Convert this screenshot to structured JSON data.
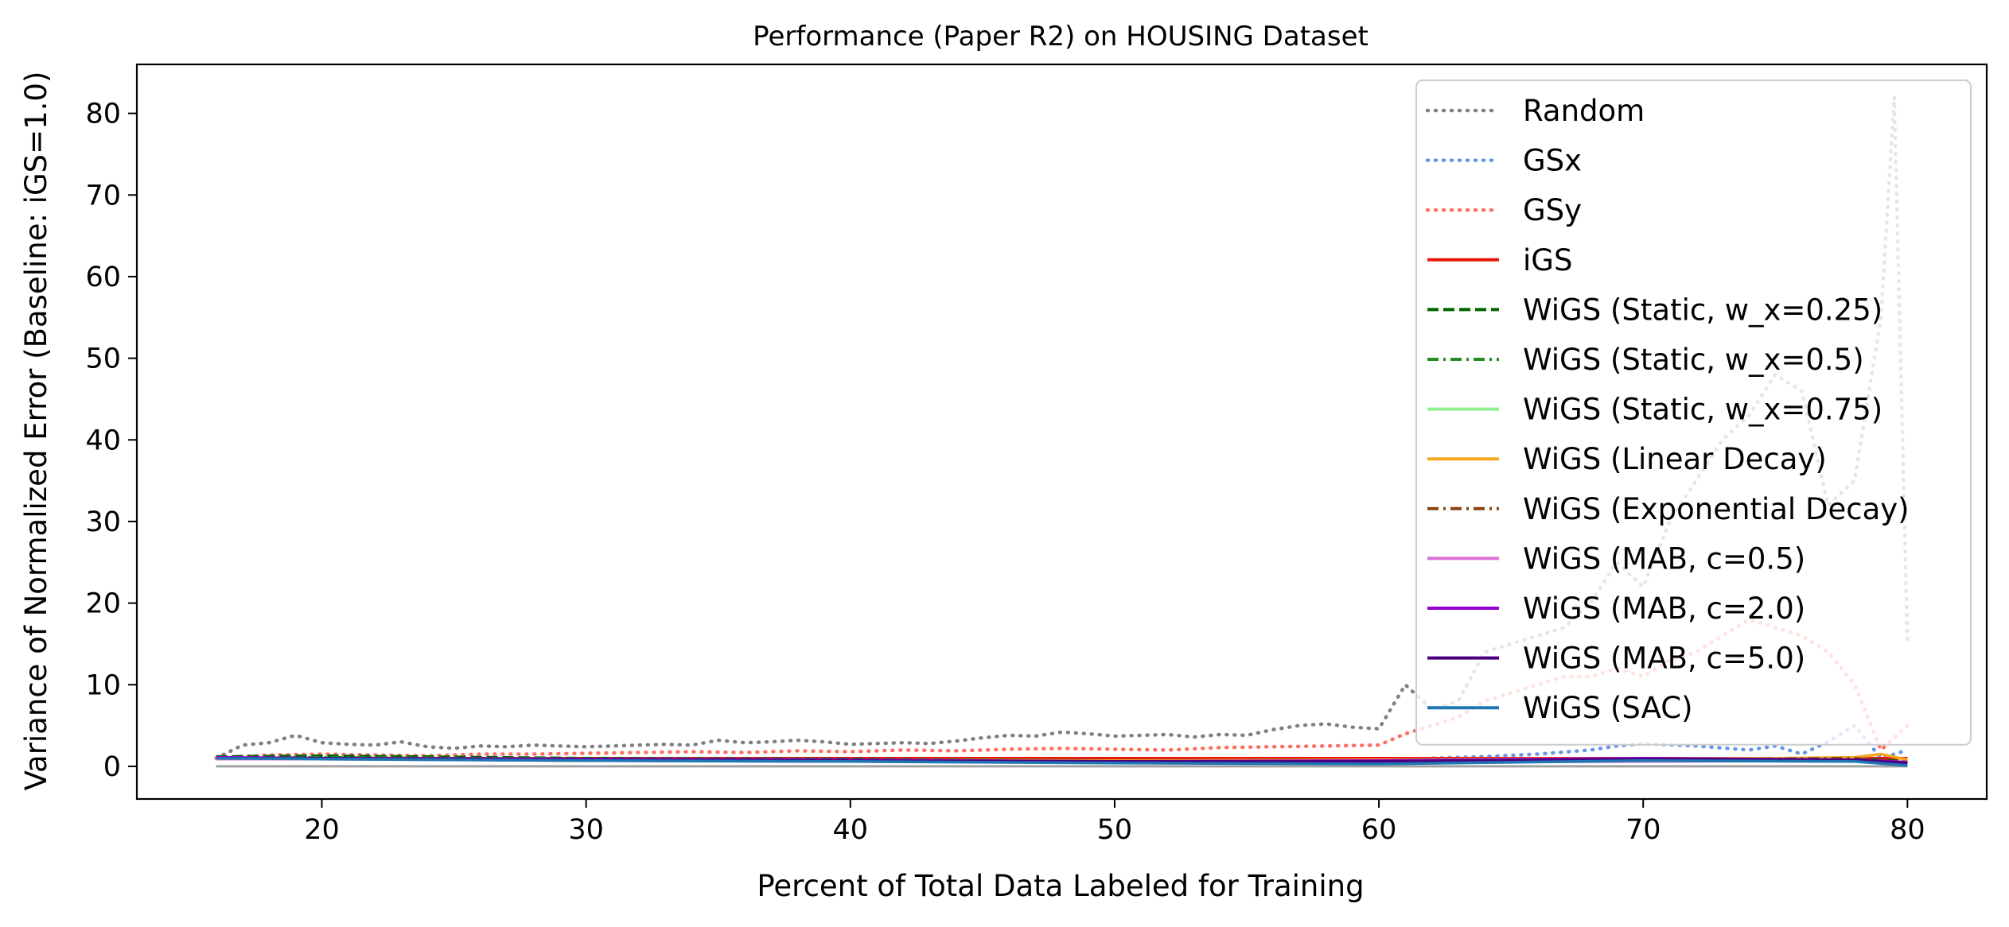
{
  "chart_data": {
    "type": "line",
    "title": "Performance (Paper R2) on HOUSING Dataset",
    "xlabel": "Percent of Total Data Labeled for Training",
    "ylabel": "Variance of Normalized Error (Baseline: iGS=1.0)",
    "xlim": [
      13,
      83
    ],
    "ylim": [
      -4,
      86
    ],
    "xticks": [
      20,
      30,
      40,
      50,
      60,
      70,
      80
    ],
    "yticks": [
      0,
      10,
      20,
      30,
      40,
      50,
      60,
      70,
      80
    ],
    "grid": false,
    "legend_placement": "top-right",
    "series": [
      {
        "name": "Random",
        "color": "#808080",
        "dash": "dotted",
        "x": [
          16,
          17,
          18,
          19,
          20,
          21,
          22,
          23,
          24,
          25,
          26,
          27,
          28,
          29,
          30,
          31,
          32,
          33,
          34,
          35,
          36,
          37,
          38,
          39,
          40,
          41,
          42,
          43,
          44,
          45,
          46,
          47,
          48,
          49,
          50,
          51,
          52,
          53,
          54,
          55,
          56,
          57,
          58,
          59,
          60,
          61,
          62,
          63,
          64,
          65,
          66,
          67,
          68,
          69,
          70,
          71,
          72,
          73,
          74,
          75,
          76,
          77,
          78,
          79,
          79.5,
          80
        ],
        "y": [
          1.0,
          2.6,
          2.9,
          3.8,
          2.9,
          2.7,
          2.6,
          3.0,
          2.4,
          2.2,
          2.5,
          2.4,
          2.6,
          2.5,
          2.4,
          2.5,
          2.6,
          2.7,
          2.6,
          3.2,
          2.9,
          3.0,
          3.2,
          3.0,
          2.7,
          2.8,
          2.9,
          2.8,
          3.1,
          3.5,
          3.8,
          3.7,
          4.2,
          4.0,
          3.7,
          3.8,
          3.9,
          3.6,
          3.9,
          3.8,
          4.5,
          5.0,
          5.2,
          4.8,
          4.6,
          10.0,
          7.0,
          8.0,
          14.0,
          15.0,
          16.0,
          17.0,
          20.0,
          25.0,
          22.0,
          30.0,
          35.0,
          40.0,
          43.0,
          48.0,
          46.0,
          32.0,
          35.0,
          55.0,
          82.0,
          15.0
        ]
      },
      {
        "name": "GSx",
        "color": "#6495ed",
        "dash": "dotted",
        "x": [
          16,
          20,
          25,
          30,
          35,
          40,
          45,
          50,
          55,
          60,
          61,
          62,
          64,
          66,
          68,
          69,
          70,
          72,
          74,
          75,
          76,
          77,
          78,
          79,
          80
        ],
        "y": [
          1.0,
          1.0,
          0.9,
          0.9,
          0.9,
          0.8,
          0.9,
          0.9,
          0.8,
          0.9,
          0.8,
          1.0,
          1.2,
          1.5,
          2.0,
          2.5,
          2.8,
          2.5,
          2.0,
          2.5,
          1.5,
          3.0,
          5.0,
          1.0,
          2.0
        ]
      },
      {
        "name": "GSy",
        "color": "#ff6f61",
        "dash": "dotted",
        "x": [
          16,
          18,
          20,
          22,
          24,
          26,
          28,
          30,
          32,
          34,
          36,
          38,
          40,
          42,
          44,
          46,
          48,
          50,
          52,
          54,
          56,
          58,
          60,
          61,
          62,
          63,
          64,
          65,
          66,
          67,
          68,
          69,
          70,
          71,
          72,
          73,
          74,
          75,
          76,
          77,
          78,
          79,
          80
        ],
        "y": [
          1.0,
          1.4,
          1.5,
          1.4,
          1.3,
          1.5,
          1.5,
          1.6,
          1.7,
          1.8,
          1.7,
          1.9,
          1.8,
          2.0,
          1.9,
          2.1,
          2.2,
          2.1,
          2.0,
          2.3,
          2.4,
          2.5,
          2.6,
          4.0,
          5.0,
          6.0,
          8.0,
          9.0,
          10.0,
          11.0,
          11.0,
          12.0,
          11.0,
          13.0,
          14.0,
          16.0,
          18.0,
          17.0,
          16.0,
          14.0,
          10.0,
          2.0,
          5.0
        ]
      },
      {
        "name": "iGS",
        "color": "#e8160c",
        "dash": "solid",
        "x": [
          16,
          80
        ],
        "y": [
          1.0,
          1.0
        ]
      },
      {
        "name": "WiGS (Static, w_x=0.25)",
        "color": "#006400",
        "dash": "dashed",
        "x": [
          16,
          20,
          30,
          40,
          50,
          60,
          70,
          78,
          80
        ],
        "y": [
          1.2,
          1.3,
          1.0,
          0.9,
          0.7,
          0.8,
          0.9,
          1.0,
          0.6
        ]
      },
      {
        "name": "WiGS (Static, w_x=0.5)",
        "color": "#228b22",
        "dash": "dashdot",
        "x": [
          16,
          20,
          30,
          40,
          50,
          60,
          70,
          78,
          80
        ],
        "y": [
          1.0,
          1.1,
          0.9,
          0.8,
          0.6,
          0.7,
          0.8,
          0.9,
          0.5
        ]
      },
      {
        "name": "WiGS (Static, w_x=0.75)",
        "color": "#90ee90",
        "dash": "solid",
        "x": [
          16,
          20,
          30,
          40,
          50,
          60,
          70,
          78,
          80
        ],
        "y": [
          0.9,
          1.0,
          0.8,
          0.7,
          0.6,
          0.6,
          0.7,
          0.8,
          0.4
        ]
      },
      {
        "name": "WiGS (Linear Decay)",
        "color": "#f5a623",
        "dash": "solid",
        "x": [
          16,
          20,
          30,
          40,
          50,
          60,
          70,
          75,
          78,
          79,
          80
        ],
        "y": [
          1.0,
          1.0,
          0.9,
          0.8,
          0.7,
          0.8,
          1.0,
          1.0,
          1.1,
          1.5,
          0.8
        ]
      },
      {
        "name": "WiGS (Exponential Decay)",
        "color": "#8b4513",
        "dash": "dashdot",
        "x": [
          16,
          20,
          30,
          40,
          50,
          60,
          70,
          78,
          80
        ],
        "y": [
          1.0,
          1.0,
          0.8,
          0.7,
          0.6,
          0.6,
          0.8,
          1.0,
          0.5
        ]
      },
      {
        "name": "WiGS (MAB, c=0.5)",
        "color": "#da70d6",
        "dash": "solid",
        "x": [
          16,
          20,
          30,
          40,
          50,
          60,
          70,
          78,
          80
        ],
        "y": [
          0.9,
          0.9,
          0.7,
          0.6,
          0.5,
          0.5,
          0.6,
          0.7,
          0.4
        ]
      },
      {
        "name": "WiGS (MAB, c=2.0)",
        "color": "#9400d3",
        "dash": "solid",
        "x": [
          16,
          20,
          30,
          40,
          50,
          60,
          70,
          78,
          80
        ],
        "y": [
          1.1,
          1.0,
          0.9,
          0.8,
          0.6,
          0.7,
          1.0,
          0.8,
          0.5
        ]
      },
      {
        "name": "WiGS (MAB, c=5.0)",
        "color": "#4b0082",
        "dash": "solid",
        "x": [
          16,
          20,
          30,
          40,
          50,
          60,
          70,
          78,
          80
        ],
        "y": [
          1.0,
          1.0,
          0.8,
          0.7,
          0.6,
          0.6,
          0.9,
          0.8,
          0.4
        ]
      },
      {
        "name": "WiGS (SAC)",
        "color": "#1f77b4",
        "dash": "solid",
        "x": [
          16,
          20,
          30,
          40,
          50,
          60,
          70,
          78,
          80
        ],
        "y": [
          1.0,
          0.9,
          0.7,
          0.6,
          0.4,
          0.3,
          0.7,
          0.6,
          0.1
        ]
      }
    ],
    "extra_lines": [
      {
        "color": "#a0a0a0",
        "x": [
          16,
          80
        ],
        "y": [
          0,
          0
        ]
      }
    ]
  }
}
